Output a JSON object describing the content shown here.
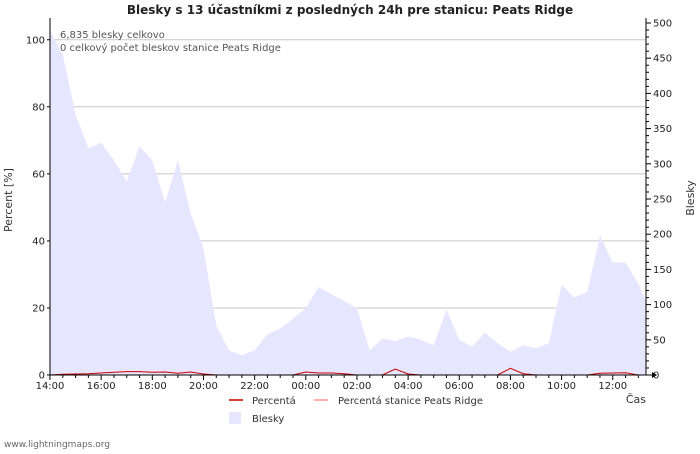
{
  "colors": {
    "background": "#ffffff",
    "area": "#e6e6ff",
    "grid": "#c8c8c8",
    "axis": "#000000",
    "percent_line": "#cc0000",
    "station_line": "#ff9999"
  },
  "chart_data": {
    "type": "area",
    "title": "Blesky s 13 účastníkmi z posledných 24h pre stanicu: Peats Ridge",
    "annotations": [
      "6,835 blesky celkovo",
      "0 celkový počet bleskov stanice Peats Ridge"
    ],
    "xlabel": "Čas",
    "ylabel_left": "Percent   [%]",
    "ylabel_right": "Blesky",
    "x_ticks": [
      "14:00",
      "16:00",
      "18:00",
      "20:00",
      "22:00",
      "00:00",
      "02:00",
      "04:00",
      "06:00",
      "08:00",
      "10:00",
      "12:00"
    ],
    "x_range_hours": [
      0,
      23.3
    ],
    "y_left_ticks": [
      0,
      20,
      40,
      60,
      80,
      100
    ],
    "y_left_range": [
      0,
      105
    ],
    "y_right_ticks": [
      0,
      50,
      100,
      150,
      200,
      250,
      300,
      350,
      400,
      450,
      500
    ],
    "y_right_range": [
      0,
      500
    ],
    "series": [
      {
        "name": "Blesky",
        "kind": "area",
        "axis": "right",
        "x": [
          0,
          0.5,
          1,
          1.5,
          2,
          2.5,
          3,
          3.5,
          4,
          4.5,
          5,
          5.5,
          6,
          6.5,
          7,
          7.5,
          8,
          8.5,
          9,
          9.5,
          10,
          10.5,
          11,
          11.5,
          12,
          12.5,
          13,
          13.5,
          14,
          14.5,
          15,
          15.5,
          16,
          16.5,
          17,
          17.5,
          18,
          18.5,
          19,
          19.5,
          20,
          20.5,
          21,
          21.5,
          22,
          22.5,
          23,
          23.3
        ],
        "values": [
          490,
          455,
          370,
          322,
          330,
          305,
          275,
          325,
          305,
          245,
          305,
          230,
          180,
          70,
          35,
          28,
          35,
          58,
          66,
          80,
          95,
          125,
          115,
          105,
          95,
          35,
          52,
          48,
          55,
          50,
          42,
          93,
          50,
          40,
          60,
          45,
          33,
          42,
          38,
          45,
          128,
          110,
          118,
          198,
          160,
          160,
          130,
          105
        ]
      },
      {
        "name": "Percentá",
        "kind": "line",
        "axis": "left",
        "x": [
          0,
          0.5,
          1,
          1.5,
          2,
          2.5,
          3,
          3.5,
          4,
          4.5,
          5,
          5.5,
          6,
          6.5,
          7,
          7.5,
          8,
          8.5,
          9,
          9.5,
          10,
          10.5,
          11,
          11.5,
          12,
          12.5,
          13,
          13.5,
          14,
          14.5,
          15,
          15.5,
          16,
          16.5,
          17,
          17.5,
          18,
          18.5,
          19,
          19.5,
          20,
          20.5,
          21,
          21.5,
          22,
          22.5,
          23,
          23.3
        ],
        "values": [
          0,
          0.2,
          0.3,
          0.4,
          0.6,
          0.8,
          1.0,
          1.0,
          0.8,
          0.9,
          0.5,
          0.9,
          0.3,
          0,
          0,
          0,
          0,
          0,
          0,
          0,
          0.9,
          0.6,
          0.6,
          0.4,
          0,
          0,
          0,
          1.8,
          0.3,
          0,
          0,
          0,
          0,
          0,
          0,
          0,
          2.0,
          0.4,
          0,
          0,
          0,
          0,
          0,
          0.5,
          0.6,
          0.7,
          0,
          0
        ]
      },
      {
        "name": "Percentá stanice Peats Ridge",
        "kind": "line",
        "axis": "left",
        "x": [
          0,
          23.3
        ],
        "values": [
          0,
          0
        ]
      }
    ],
    "legend": {
      "placement": "bottom",
      "entries": [
        "Percentá",
        "Percentá stanice Peats Ridge",
        "Blesky"
      ]
    }
  },
  "footer": "www.lightningmaps.org"
}
